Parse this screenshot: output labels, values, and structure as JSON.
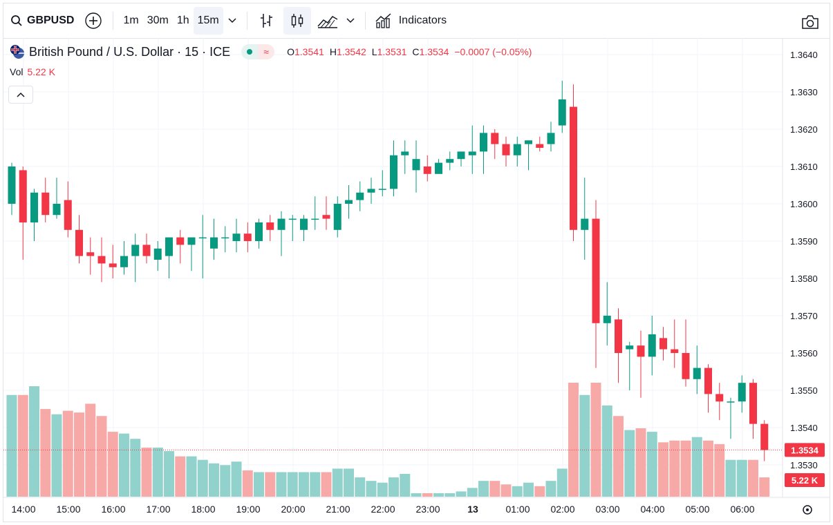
{
  "toolbar": {
    "symbol": "GBPUSD",
    "intervals": [
      "1m",
      "30m",
      "1h",
      "15m"
    ],
    "active_interval": "15m",
    "indicators_label": "Indicators"
  },
  "legend": {
    "title": "British Pound / U.S. Dollar · 15 · ICE",
    "pill_icon": "≈",
    "o_label": "O",
    "o_val": "1.3541",
    "h_label": "H",
    "h_val": "1.3542",
    "l_label": "L",
    "l_val": "1.3531",
    "c_label": "C",
    "c_val": "1.3534",
    "change": "−0.0007 (−0.05%)",
    "vol_label": "Vol",
    "vol_val": "5.22 K"
  },
  "colors": {
    "up": "#089981",
    "down": "#f23645",
    "up_vol": "#92d2cc",
    "down_vol": "#f7a9a7"
  },
  "chart_data": {
    "type": "candlestick",
    "symbol": "GBPUSD",
    "interval": "15m",
    "y_ticks": [
      "1.3640",
      "1.3630",
      "1.3620",
      "1.3610",
      "1.3600",
      "1.3590",
      "1.3580",
      "1.3570",
      "1.3560",
      "1.3550",
      "1.3540",
      "1.3530"
    ],
    "x_ticks": [
      "14:00",
      "15:00",
      "16:00",
      "17:00",
      "18:00",
      "19:00",
      "20:00",
      "21:00",
      "22:00",
      "23:00",
      "13",
      "01:00",
      "02:00",
      "03:00",
      "04:00",
      "05:00",
      "06:00"
    ],
    "ylim": [
      1.3523,
      1.3648
    ],
    "last_price_label": "1.3534",
    "volume_label": "5.22 K",
    "candles": [
      {
        "o": 1.36,
        "h": 1.3611,
        "l": 1.3597,
        "c": 1.361,
        "v": 0.58
      },
      {
        "o": 1.3609,
        "h": 1.361,
        "l": 1.3585,
        "c": 1.3595,
        "v": 0.58
      },
      {
        "o": 1.3595,
        "h": 1.3604,
        "l": 1.359,
        "c": 1.3603,
        "v": 0.63
      },
      {
        "o": 1.3603,
        "h": 1.3607,
        "l": 1.3595,
        "c": 1.3597,
        "v": 0.5
      },
      {
        "o": 1.3597,
        "h": 1.3607,
        "l": 1.3596,
        "c": 1.36,
        "v": 0.47
      },
      {
        "o": 1.3601,
        "h": 1.3606,
        "l": 1.3591,
        "c": 1.3593,
        "v": 0.49
      },
      {
        "o": 1.3593,
        "h": 1.3597,
        "l": 1.3584,
        "c": 1.3586,
        "v": 0.48
      },
      {
        "o": 1.3587,
        "h": 1.3591,
        "l": 1.3581,
        "c": 1.3586,
        "v": 0.53
      },
      {
        "o": 1.3586,
        "h": 1.3591,
        "l": 1.3579,
        "c": 1.3584,
        "v": 0.46
      },
      {
        "o": 1.3584,
        "h": 1.3589,
        "l": 1.358,
        "c": 1.3583,
        "v": 0.37
      },
      {
        "o": 1.3583,
        "h": 1.359,
        "l": 1.3581,
        "c": 1.3586,
        "v": 0.36
      },
      {
        "o": 1.3586,
        "h": 1.3592,
        "l": 1.3579,
        "c": 1.3589,
        "v": 0.33
      },
      {
        "o": 1.3589,
        "h": 1.3592,
        "l": 1.3584,
        "c": 1.3586,
        "v": 0.28
      },
      {
        "o": 1.3585,
        "h": 1.359,
        "l": 1.3582,
        "c": 1.3588,
        "v": 0.28
      },
      {
        "o": 1.3586,
        "h": 1.3591,
        "l": 1.358,
        "c": 1.3591,
        "v": 0.26
      },
      {
        "o": 1.3591,
        "h": 1.3593,
        "l": 1.3584,
        "c": 1.3589,
        "v": 0.23
      },
      {
        "o": 1.3589,
        "h": 1.3591,
        "l": 1.3582,
        "c": 1.3591,
        "v": 0.23
      },
      {
        "o": 1.3591,
        "h": 1.3597,
        "l": 1.358,
        "c": 1.3591,
        "v": 0.21
      },
      {
        "o": 1.3588,
        "h": 1.3596,
        "l": 1.3585,
        "c": 1.3591,
        "v": 0.19
      },
      {
        "o": 1.3591,
        "h": 1.3594,
        "l": 1.3587,
        "c": 1.3591,
        "v": 0.18
      },
      {
        "o": 1.359,
        "h": 1.3596,
        "l": 1.3587,
        "c": 1.3592,
        "v": 0.2
      },
      {
        "o": 1.3592,
        "h": 1.3595,
        "l": 1.3587,
        "c": 1.359,
        "v": 0.15
      },
      {
        "o": 1.359,
        "h": 1.3596,
        "l": 1.3588,
        "c": 1.3595,
        "v": 0.14
      },
      {
        "o": 1.3595,
        "h": 1.3597,
        "l": 1.359,
        "c": 1.3593,
        "v": 0.14
      },
      {
        "o": 1.3593,
        "h": 1.3598,
        "l": 1.3586,
        "c": 1.3596,
        "v": 0.14
      },
      {
        "o": 1.3596,
        "h": 1.3597,
        "l": 1.359,
        "c": 1.3596,
        "v": 0.14
      },
      {
        "o": 1.3593,
        "h": 1.3597,
        "l": 1.359,
        "c": 1.3596,
        "v": 0.14
      },
      {
        "o": 1.3596,
        "h": 1.3602,
        "l": 1.3593,
        "c": 1.3596,
        "v": 0.14
      },
      {
        "o": 1.3597,
        "h": 1.3602,
        "l": 1.3593,
        "c": 1.3596,
        "v": 0.14
      },
      {
        "o": 1.3593,
        "h": 1.3602,
        "l": 1.3591,
        "c": 1.36,
        "v": 0.16
      },
      {
        "o": 1.36,
        "h": 1.3605,
        "l": 1.3596,
        "c": 1.3601,
        "v": 0.16
      },
      {
        "o": 1.3601,
        "h": 1.3606,
        "l": 1.3598,
        "c": 1.3603,
        "v": 0.11
      },
      {
        "o": 1.3603,
        "h": 1.3607,
        "l": 1.36,
        "c": 1.3604,
        "v": 0.09
      },
      {
        "o": 1.3604,
        "h": 1.3609,
        "l": 1.3602,
        "c": 1.3604,
        "v": 0.08
      },
      {
        "o": 1.3604,
        "h": 1.3617,
        "l": 1.3602,
        "c": 1.3613,
        "v": 0.11
      },
      {
        "o": 1.3613,
        "h": 1.3617,
        "l": 1.3608,
        "c": 1.3614,
        "v": 0.13
      },
      {
        "o": 1.3609,
        "h": 1.3617,
        "l": 1.3603,
        "c": 1.3612,
        "v": 0.02
      },
      {
        "o": 1.361,
        "h": 1.3613,
        "l": 1.3606,
        "c": 1.3608,
        "v": 0.02
      },
      {
        "o": 1.3608,
        "h": 1.3612,
        "l": 1.3608,
        "c": 1.3611,
        "v": 0.02
      },
      {
        "o": 1.3611,
        "h": 1.3614,
        "l": 1.3609,
        "c": 1.3612,
        "v": 0.02
      },
      {
        "o": 1.3612,
        "h": 1.3614,
        "l": 1.361,
        "c": 1.3614,
        "v": 0.03
      },
      {
        "o": 1.3613,
        "h": 1.3621,
        "l": 1.3608,
        "c": 1.3614,
        "v": 0.05
      },
      {
        "o": 1.3614,
        "h": 1.3621,
        "l": 1.3608,
        "c": 1.3619,
        "v": 0.09
      },
      {
        "o": 1.3619,
        "h": 1.362,
        "l": 1.3612,
        "c": 1.3616,
        "v": 0.09
      },
      {
        "o": 1.3616,
        "h": 1.3618,
        "l": 1.361,
        "c": 1.3613,
        "v": 0.07
      },
      {
        "o": 1.3613,
        "h": 1.3618,
        "l": 1.361,
        "c": 1.3616,
        "v": 0.06
      },
      {
        "o": 1.3616,
        "h": 1.3617,
        "l": 1.3609,
        "c": 1.3617,
        "v": 0.08
      },
      {
        "o": 1.3616,
        "h": 1.3618,
        "l": 1.3614,
        "c": 1.3615,
        "v": 0.06
      },
      {
        "o": 1.3616,
        "h": 1.3622,
        "l": 1.3614,
        "c": 1.3619,
        "v": 0.09
      },
      {
        "o": 1.3621,
        "h": 1.3633,
        "l": 1.3619,
        "c": 1.3628,
        "v": 0.16
      },
      {
        "o": 1.3626,
        "h": 1.3632,
        "l": 1.359,
        "c": 1.3593,
        "v": 0.65
      },
      {
        "o": 1.3593,
        "h": 1.3607,
        "l": 1.3585,
        "c": 1.3596,
        "v": 0.58
      },
      {
        "o": 1.3596,
        "h": 1.3601,
        "l": 1.3556,
        "c": 1.3568,
        "v": 0.65
      },
      {
        "o": 1.3568,
        "h": 1.3579,
        "l": 1.3562,
        "c": 1.357,
        "v": 0.52
      },
      {
        "o": 1.3569,
        "h": 1.3572,
        "l": 1.3552,
        "c": 1.356,
        "v": 0.46
      },
      {
        "o": 1.3561,
        "h": 1.3563,
        "l": 1.355,
        "c": 1.3562,
        "v": 0.38
      },
      {
        "o": 1.3562,
        "h": 1.3566,
        "l": 1.3548,
        "c": 1.3559,
        "v": 0.39
      },
      {
        "o": 1.3559,
        "h": 1.357,
        "l": 1.3554,
        "c": 1.3565,
        "v": 0.37
      },
      {
        "o": 1.3564,
        "h": 1.3567,
        "l": 1.3558,
        "c": 1.3561,
        "v": 0.31
      },
      {
        "o": 1.3561,
        "h": 1.3569,
        "l": 1.3556,
        "c": 1.356,
        "v": 0.32
      },
      {
        "o": 1.356,
        "h": 1.3569,
        "l": 1.3551,
        "c": 1.3553,
        "v": 0.32
      },
      {
        "o": 1.3553,
        "h": 1.3562,
        "l": 1.3549,
        "c": 1.3556,
        "v": 0.34
      },
      {
        "o": 1.3556,
        "h": 1.3557,
        "l": 1.3544,
        "c": 1.3549,
        "v": 0.32
      },
      {
        "o": 1.3549,
        "h": 1.3552,
        "l": 1.3542,
        "c": 1.3547,
        "v": 0.3
      },
      {
        "o": 1.3547,
        "h": 1.3548,
        "l": 1.3537,
        "c": 1.3547,
        "v": 0.21
      },
      {
        "o": 1.3547,
        "h": 1.3554,
        "l": 1.3544,
        "c": 1.3552,
        "v": 0.21
      },
      {
        "o": 1.3552,
        "h": 1.3553,
        "l": 1.3537,
        "c": 1.3541,
        "v": 0.21
      },
      {
        "o": 1.3541,
        "h": 1.3542,
        "l": 1.3531,
        "c": 1.3534,
        "v": 0.11
      }
    ]
  }
}
